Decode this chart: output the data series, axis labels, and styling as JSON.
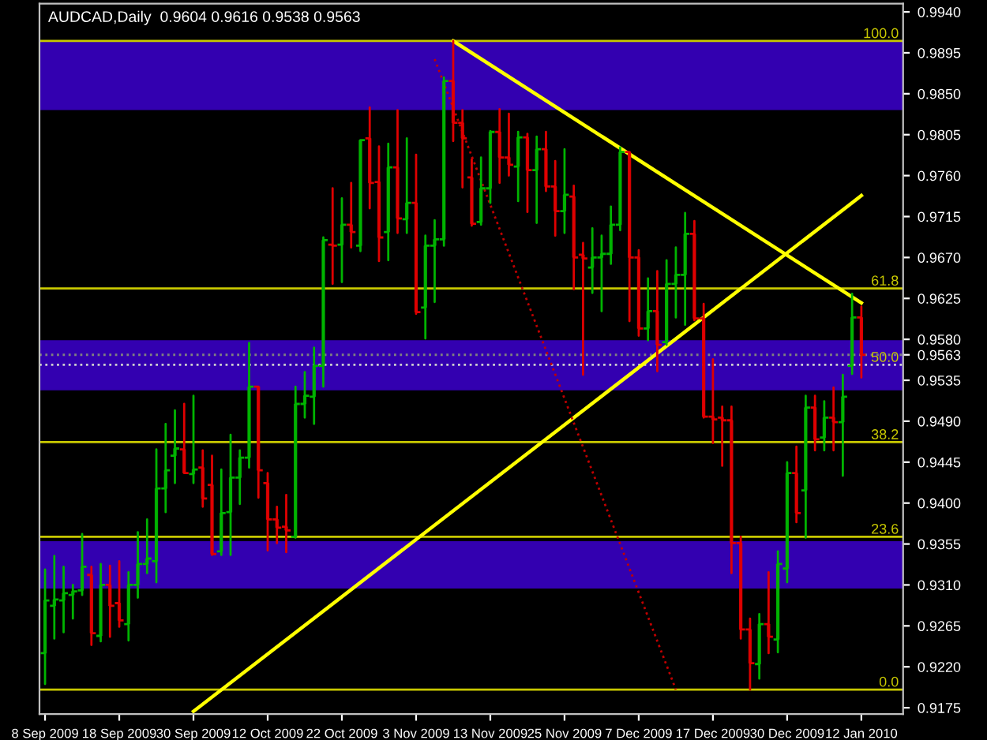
{
  "chart_data": {
    "type": "candlestick",
    "title": "AUDCAD,Daily  0.9604 0.9616 0.9538 0.9563",
    "categories": [
      "8 Sep 2009",
      null,
      null,
      null,
      null,
      null,
      null,
      null,
      "18 Sep 2009",
      null,
      null,
      null,
      null,
      null,
      null,
      null,
      "30 Sep 2009",
      null,
      null,
      null,
      null,
      null,
      null,
      null,
      "12 Oct 2009",
      null,
      null,
      null,
      null,
      null,
      null,
      null,
      "22 Oct 2009",
      null,
      null,
      null,
      null,
      null,
      null,
      null,
      "3 Nov 2009",
      null,
      null,
      null,
      null,
      null,
      null,
      null,
      "13 Nov 2009",
      null,
      null,
      null,
      null,
      null,
      null,
      null,
      "25 Nov 2009",
      null,
      null,
      null,
      null,
      null,
      null,
      null,
      "7 Dec 2009",
      null,
      null,
      null,
      null,
      null,
      null,
      null,
      "17 Dec 2009",
      null,
      null,
      null,
      null,
      null,
      null,
      null,
      "30 Dec 2009",
      null,
      null,
      null,
      null,
      null,
      null,
      null,
      "12 Jan 2010"
    ],
    "ohlc": [
      [
        0.9235,
        0.9327,
        0.9201,
        0.9293
      ],
      [
        0.9287,
        0.9342,
        0.9251,
        0.9294
      ],
      [
        0.9293,
        0.933,
        0.9258,
        0.9301
      ],
      [
        0.9299,
        0.931,
        0.9273,
        0.9303
      ],
      [
        0.9304,
        0.9366,
        0.9299,
        0.933
      ],
      [
        0.9321,
        0.933,
        0.9244,
        0.9257
      ],
      [
        0.9254,
        0.9333,
        0.9248,
        0.931
      ],
      [
        0.931,
        0.9331,
        0.9253,
        0.9287
      ],
      [
        0.929,
        0.9336,
        0.9264,
        0.9271
      ],
      [
        0.9267,
        0.9324,
        0.9249,
        0.931
      ],
      [
        0.931,
        0.9368,
        0.9296,
        0.9333
      ],
      [
        0.9333,
        0.9382,
        0.9323,
        0.9339
      ],
      [
        0.9336,
        0.9459,
        0.9313,
        0.9416
      ],
      [
        0.9416,
        0.9487,
        0.939,
        0.9436
      ],
      [
        0.9452,
        0.9502,
        0.9422,
        0.946
      ],
      [
        0.9459,
        0.9509,
        0.9433,
        0.9433
      ],
      [
        0.9432,
        0.9518,
        0.9422,
        0.9437
      ],
      [
        0.9439,
        0.9458,
        0.9396,
        0.9405
      ],
      [
        0.942,
        0.9452,
        0.9343,
        0.9344
      ],
      [
        0.9347,
        0.9437,
        0.9343,
        0.9389
      ],
      [
        0.939,
        0.9475,
        0.9343,
        0.9428
      ],
      [
        0.9428,
        0.9458,
        0.9399,
        0.945
      ],
      [
        0.945,
        0.9576,
        0.9439,
        0.9528
      ],
      [
        0.9528,
        0.9528,
        0.9406,
        0.9436
      ],
      [
        0.9422,
        0.9433,
        0.9348,
        0.9382
      ],
      [
        0.9382,
        0.9396,
        0.9356,
        0.9373
      ],
      [
        0.9374,
        0.9409,
        0.9346,
        0.937
      ],
      [
        0.9363,
        0.9528,
        0.9362,
        0.9509
      ],
      [
        0.9509,
        0.9544,
        0.9494,
        0.9518
      ],
      [
        0.9517,
        0.9571,
        0.9487,
        0.9551
      ],
      [
        0.9551,
        0.9692,
        0.9528,
        0.9689
      ],
      [
        0.9684,
        0.9746,
        0.9641,
        0.9683
      ],
      [
        0.9684,
        0.9735,
        0.9643,
        0.9706
      ],
      [
        0.9706,
        0.9752,
        0.9681,
        0.9698
      ],
      [
        0.9683,
        0.9799,
        0.9677,
        0.9799
      ],
      [
        0.9801,
        0.9835,
        0.9724,
        0.9752
      ],
      [
        0.9753,
        0.9792,
        0.9666,
        0.9692
      ],
      [
        0.9698,
        0.9795,
        0.9667,
        0.9769
      ],
      [
        0.9769,
        0.9832,
        0.9697,
        0.9713
      ],
      [
        0.9712,
        0.9801,
        0.9697,
        0.973
      ],
      [
        0.973,
        0.9783,
        0.9608,
        0.961
      ],
      [
        0.9615,
        0.9694,
        0.9581,
        0.9683
      ],
      [
        0.9683,
        0.9711,
        0.9621,
        0.969
      ],
      [
        0.969,
        0.9868,
        0.9683,
        0.9864
      ],
      [
        0.9864,
        0.9908,
        0.9798,
        0.9818
      ],
      [
        0.9818,
        0.9832,
        0.9747,
        0.9801
      ],
      [
        0.9758,
        0.9778,
        0.9705,
        0.9707
      ],
      [
        0.9709,
        0.978,
        0.9706,
        0.9746
      ],
      [
        0.9746,
        0.9809,
        0.973,
        0.9808
      ],
      [
        0.9808,
        0.9833,
        0.9752,
        0.978
      ],
      [
        0.978,
        0.9828,
        0.976,
        0.9772
      ],
      [
        0.977,
        0.9808,
        0.9732,
        0.9802
      ],
      [
        0.9802,
        0.9806,
        0.972,
        0.9766
      ],
      [
        0.9766,
        0.9803,
        0.9708,
        0.9789
      ],
      [
        0.9789,
        0.9808,
        0.9743,
        0.9748
      ],
      [
        0.9748,
        0.9776,
        0.9694,
        0.9721
      ],
      [
        0.9721,
        0.9789,
        0.9697,
        0.9739
      ],
      [
        0.9737,
        0.9749,
        0.9635,
        0.967
      ],
      [
        0.9673,
        0.9686,
        0.9541,
        0.9669
      ],
      [
        0.9659,
        0.9702,
        0.9631,
        0.967
      ],
      [
        0.967,
        0.9694,
        0.9611,
        0.9674
      ],
      [
        0.9674,
        0.9726,
        0.9663,
        0.9706
      ],
      [
        0.9706,
        0.9791,
        0.97,
        0.9786
      ],
      [
        0.9786,
        0.9786,
        0.96,
        0.967
      ],
      [
        0.967,
        0.9678,
        0.9584,
        0.9592
      ],
      [
        0.9592,
        0.9647,
        0.9579,
        0.9611
      ],
      [
        0.9611,
        0.9655,
        0.9545,
        0.9574
      ],
      [
        0.9577,
        0.9667,
        0.9574,
        0.9641
      ],
      [
        0.9641,
        0.9681,
        0.9604,
        0.9651
      ],
      [
        0.9651,
        0.9719,
        0.9596,
        0.9696
      ],
      [
        0.9696,
        0.971,
        0.9601,
        0.9603
      ],
      [
        0.9603,
        0.9619,
        0.9494,
        0.9495
      ],
      [
        0.9495,
        0.9558,
        0.9466,
        0.9492
      ],
      [
        0.9494,
        0.9506,
        0.9441,
        0.9491
      ],
      [
        0.9491,
        0.9506,
        0.9323,
        0.9356
      ],
      [
        0.9356,
        0.9363,
        0.9251,
        0.9261
      ],
      [
        0.9261,
        0.9273,
        0.9195,
        0.9224
      ],
      [
        0.9223,
        0.9278,
        0.9207,
        0.9267
      ],
      [
        0.9267,
        0.9324,
        0.9235,
        0.9253
      ],
      [
        0.925,
        0.9347,
        0.9236,
        0.9333
      ],
      [
        0.9328,
        0.9445,
        0.9313,
        0.9433
      ],
      [
        0.9433,
        0.9462,
        0.9379,
        0.9389
      ],
      [
        0.9414,
        0.9518,
        0.9362,
        0.9505
      ],
      [
        0.9505,
        0.9518,
        0.9458,
        0.947
      ],
      [
        0.9472,
        0.9512,
        0.9458,
        0.9494
      ],
      [
        0.9494,
        0.9527,
        0.9458,
        0.9489
      ],
      [
        0.9489,
        0.9541,
        0.943,
        0.9517
      ],
      [
        0.9551,
        0.963,
        0.9542,
        0.9604
      ],
      [
        0.9604,
        0.9616,
        0.9538,
        0.9563
      ]
    ],
    "colors": [
      "#00b400",
      "#00b400",
      "#00b400",
      "#00b400",
      "#00b400",
      "#e00000",
      "#00b400",
      "#e00000",
      "#e00000",
      "#00b400",
      "#00b400",
      "#00b400",
      "#00b400",
      "#00b400",
      "#00b400",
      "#e00000",
      "#00b400",
      "#e00000",
      "#e00000",
      "#00b400",
      "#00b400",
      "#00b400",
      "#00b400",
      "#e00000",
      "#e00000",
      "#e00000",
      "#e00000",
      "#00b400",
      "#00b400",
      "#00b400",
      "#00b400",
      "#e00000",
      "#00b400",
      "#e00000",
      "#00b400",
      "#e00000",
      "#e00000",
      "#00b400",
      "#e00000",
      "#00b400",
      "#e00000",
      "#00b400",
      "#00b400",
      "#00b400",
      "#e00000",
      "#e00000",
      "#e00000",
      "#00b400",
      "#00b400",
      "#e00000",
      "#e00000",
      "#00b400",
      "#e00000",
      "#00b400",
      "#e00000",
      "#e00000",
      "#00b400",
      "#e00000",
      "#e00000",
      "#00b400",
      "#00b400",
      "#00b400",
      "#00b400",
      "#e00000",
      "#e00000",
      "#00b400",
      "#e00000",
      "#00b400",
      "#00b400",
      "#00b400",
      "#e00000",
      "#e00000",
      "#e00000",
      "#e00000",
      "#e00000",
      "#e00000",
      "#e00000",
      "#00b400",
      "#e00000",
      "#00b400",
      "#00b400",
      "#e00000",
      "#00b400",
      "#e00000",
      "#00b400",
      "#e00000",
      "#00b400",
      "#00b400",
      "#e00000"
    ],
    "series": [
      {
        "type": "line",
        "values": [
          null,
          null,
          null,
          null,
          null,
          null,
          null,
          null,
          null,
          null,
          null,
          null,
          null,
          null,
          null,
          null,
          null,
          null,
          null,
          null,
          null,
          null,
          null,
          null,
          null,
          null,
          null,
          null,
          null,
          null,
          null,
          null,
          null,
          null,
          null,
          null,
          null,
          null,
          null,
          null,
          null,
          null,
          null,
          null,
          0.9908,
          null,
          null,
          null,
          null,
          null,
          null,
          null,
          null,
          null,
          null,
          null,
          null,
          null,
          null,
          null,
          null,
          null,
          null,
          null,
          null,
          null,
          null,
          null,
          null,
          null,
          null,
          null,
          null,
          null,
          null,
          null,
          null,
          null,
          null,
          null,
          null,
          null,
          null,
          null,
          null,
          null,
          null,
          null,
          0.962
        ],
        "color": "#ffff00"
      },
      {
        "type": "line",
        "values": [
          null,
          null,
          null,
          null,
          null,
          null,
          null,
          null,
          null,
          null,
          null,
          null,
          null,
          null,
          null,
          null,
          0.9171,
          null,
          null,
          null,
          null,
          null,
          null,
          null,
          null,
          null,
          null,
          null,
          null,
          null,
          null,
          null,
          null,
          null,
          null,
          null,
          null,
          null,
          null,
          null,
          null,
          null,
          null,
          null,
          null,
          null,
          null,
          null,
          null,
          null,
          null,
          null,
          null,
          null,
          null,
          null,
          null,
          null,
          null,
          null,
          null,
          null,
          null,
          null,
          null,
          null,
          null,
          null,
          null,
          null,
          null,
          null,
          null,
          null,
          null,
          null,
          null,
          null,
          null,
          null,
          null,
          null,
          null,
          null,
          null,
          null,
          null,
          null,
          0.9738
        ],
        "color": "#ffff00"
      },
      {
        "type": "line",
        "values": [
          null,
          null,
          null,
          null,
          null,
          null,
          null,
          null,
          null,
          null,
          null,
          null,
          null,
          null,
          null,
          null,
          null,
          null,
          null,
          null,
          null,
          null,
          null,
          null,
          null,
          null,
          null,
          null,
          null,
          null,
          null,
          null,
          null,
          null,
          null,
          null,
          null,
          null,
          null,
          null,
          null,
          null,
          0.9888,
          null,
          null,
          null,
          null,
          null,
          null,
          null,
          null,
          null,
          null,
          null,
          null,
          null,
          null,
          null,
          null,
          null,
          null,
          null,
          null,
          null,
          null,
          null,
          null,
          null,
          0.9195,
          null,
          null,
          null,
          null,
          null,
          null,
          null,
          null,
          null,
          null,
          null,
          null,
          null,
          null,
          null,
          null,
          null,
          null,
          null,
          null
        ],
        "color": "#c00000",
        "line_style": "dotted"
      }
    ],
    "annotations": [
      {
        "text": "100.0",
        "y": 0.9908
      },
      {
        "text": "61.8",
        "y": 0.9636
      },
      {
        "text": "50.0",
        "y": 0.9552
      },
      {
        "text": "38.2",
        "y": 0.9467
      },
      {
        "text": "23.6",
        "y": 0.9363
      },
      {
        "text": "0.0",
        "y": 0.9195
      }
    ],
    "bands": [
      {
        "axis": "y",
        "from": 0.9832,
        "to": 0.9907,
        "color": "#3300b0"
      },
      {
        "axis": "y",
        "from": 0.9524,
        "to": 0.9579,
        "color": "#3300b0"
      },
      {
        "axis": "y",
        "from": 0.9306,
        "to": 0.9358,
        "color": "#3300b0"
      }
    ],
    "ref_lines": [
      {
        "axis": "y",
        "value": 0.9908,
        "color": "#c8c800"
      },
      {
        "axis": "y",
        "value": 0.9636,
        "color": "#c8c800"
      },
      {
        "axis": "y",
        "value": 0.9552,
        "color": "#d0d0d0",
        "line_style": "dotted"
      },
      {
        "axis": "y",
        "value": 0.9467,
        "color": "#c8c800"
      },
      {
        "axis": "y",
        "value": 0.9363,
        "color": "#c8c800"
      },
      {
        "axis": "y",
        "value": 0.9195,
        "color": "#c8c800"
      },
      {
        "axis": "y",
        "value": 0.9563,
        "color": "#808080",
        "line_style": "dotted"
      }
    ],
    "ylim": [
      0.9168,
      0.9949
    ],
    "yticks": [
      0.9175,
      {
        "value": 0.922,
        "label": "0.9220"
      },
      0.9265,
      {
        "value": 0.931,
        "label": "0.9310"
      },
      0.9355,
      {
        "value": 0.94,
        "label": "0.9400"
      },
      0.9445,
      {
        "value": 0.949,
        "label": "0.9490"
      },
      0.9535,
      {
        "value": 0.958,
        "label": "0.9580"
      },
      0.9625,
      {
        "value": 0.967,
        "label": "0.9670"
      },
      0.9715,
      {
        "value": 0.976,
        "label": "0.9760"
      },
      0.9805,
      {
        "value": 0.985,
        "label": "0.9850"
      },
      0.9895,
      {
        "value": 0.994,
        "label": "0.9940"
      },
      0.9563
    ],
    "grid": false
  }
}
